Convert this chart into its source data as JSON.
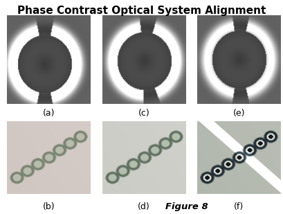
{
  "title": "Phase Contrast Optical System Alignment",
  "title_fontsize": 11,
  "title_fontweight": "bold",
  "labels": [
    "(a)",
    "(c)",
    "(e)",
    "(b)",
    "(d)",
    "(f)"
  ],
  "figure8_text": "Figure 8",
  "label_fontsize": 9,
  "bg_color": "#ffffff"
}
